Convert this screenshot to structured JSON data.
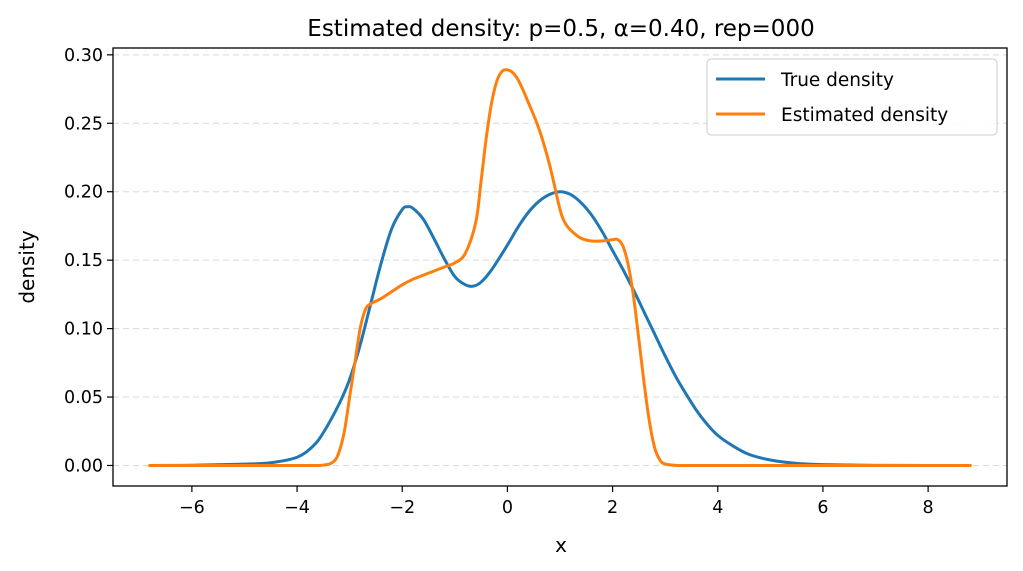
{
  "chart_data": {
    "type": "line",
    "title": "Estimated density: p=0.5, α=0.40, rep=000",
    "xlabel": "x",
    "ylabel": "density",
    "xlim": [
      -7.5,
      9.5
    ],
    "ylim": [
      -0.015,
      0.305
    ],
    "xticks": [
      -6,
      -4,
      -2,
      0,
      2,
      4,
      6,
      8
    ],
    "xtick_labels": [
      "−6",
      "−4",
      "−2",
      "0",
      "2",
      "4",
      "6",
      "8"
    ],
    "yticks": [
      0.0,
      0.05,
      0.1,
      0.15,
      0.2,
      0.25,
      0.3
    ],
    "ytick_labels": [
      "0.00",
      "0.05",
      "0.10",
      "0.15",
      "0.20",
      "0.25",
      "0.30"
    ],
    "grid": "horizontal dashed",
    "legend_position": "top-right",
    "series": [
      {
        "name": "True density",
        "color": "#1f77b4",
        "x": [
          -6.8,
          -6.0,
          -5.0,
          -4.5,
          -4.0,
          -3.7,
          -3.5,
          -3.2,
          -3.0,
          -2.8,
          -2.6,
          -2.4,
          -2.2,
          -2.0,
          -1.9,
          -1.8,
          -1.6,
          -1.4,
          -1.2,
          -1.0,
          -0.8,
          -0.65,
          -0.5,
          -0.3,
          0.0,
          0.2,
          0.4,
          0.6,
          0.8,
          1.0,
          1.2,
          1.4,
          1.6,
          1.8,
          2.0,
          2.2,
          2.4,
          2.6,
          2.8,
          3.0,
          3.2,
          3.4,
          3.6,
          3.8,
          4.0,
          4.3,
          4.6,
          5.0,
          5.5,
          6.0,
          7.0,
          8.0,
          8.8
        ],
        "y": [
          0.0,
          0.0002,
          0.001,
          0.002,
          0.006,
          0.014,
          0.024,
          0.045,
          0.063,
          0.088,
          0.118,
          0.148,
          0.173,
          0.187,
          0.189,
          0.188,
          0.18,
          0.166,
          0.151,
          0.138,
          0.132,
          0.131,
          0.134,
          0.143,
          0.161,
          0.174,
          0.185,
          0.193,
          0.198,
          0.2,
          0.198,
          0.192,
          0.183,
          0.171,
          0.157,
          0.143,
          0.128,
          0.112,
          0.096,
          0.08,
          0.065,
          0.052,
          0.04,
          0.03,
          0.022,
          0.014,
          0.008,
          0.004,
          0.0015,
          0.0006,
          0.0001,
          0.0,
          0.0
        ]
      },
      {
        "name": "Estimated density",
        "color": "#ff7f0e",
        "x": [
          -6.8,
          -4.0,
          -3.5,
          -3.3,
          -3.2,
          -3.1,
          -3.0,
          -2.9,
          -2.8,
          -2.7,
          -2.6,
          -2.4,
          -2.2,
          -2.0,
          -1.8,
          -1.6,
          -1.4,
          -1.2,
          -1.0,
          -0.8,
          -0.6,
          -0.5,
          -0.4,
          -0.3,
          -0.2,
          -0.1,
          0.0,
          0.1,
          0.2,
          0.3,
          0.4,
          0.6,
          0.8,
          1.0,
          1.1,
          1.2,
          1.4,
          1.6,
          1.8,
          2.0,
          2.1,
          2.2,
          2.3,
          2.4,
          2.5,
          2.6,
          2.7,
          2.8,
          2.9,
          3.0,
          3.2,
          3.5,
          4.0,
          6.0,
          8.8
        ],
        "y": [
          0.0,
          0.0,
          0.0003,
          0.003,
          0.01,
          0.025,
          0.05,
          0.075,
          0.1,
          0.114,
          0.118,
          0.122,
          0.127,
          0.132,
          0.136,
          0.139,
          0.142,
          0.145,
          0.148,
          0.155,
          0.178,
          0.208,
          0.24,
          0.265,
          0.281,
          0.288,
          0.289,
          0.287,
          0.282,
          0.274,
          0.265,
          0.246,
          0.22,
          0.187,
          0.177,
          0.172,
          0.166,
          0.164,
          0.164,
          0.165,
          0.165,
          0.16,
          0.146,
          0.123,
          0.092,
          0.06,
          0.032,
          0.013,
          0.004,
          0.001,
          0.0001,
          0.0,
          0.0,
          0.0,
          0.0
        ]
      }
    ]
  }
}
